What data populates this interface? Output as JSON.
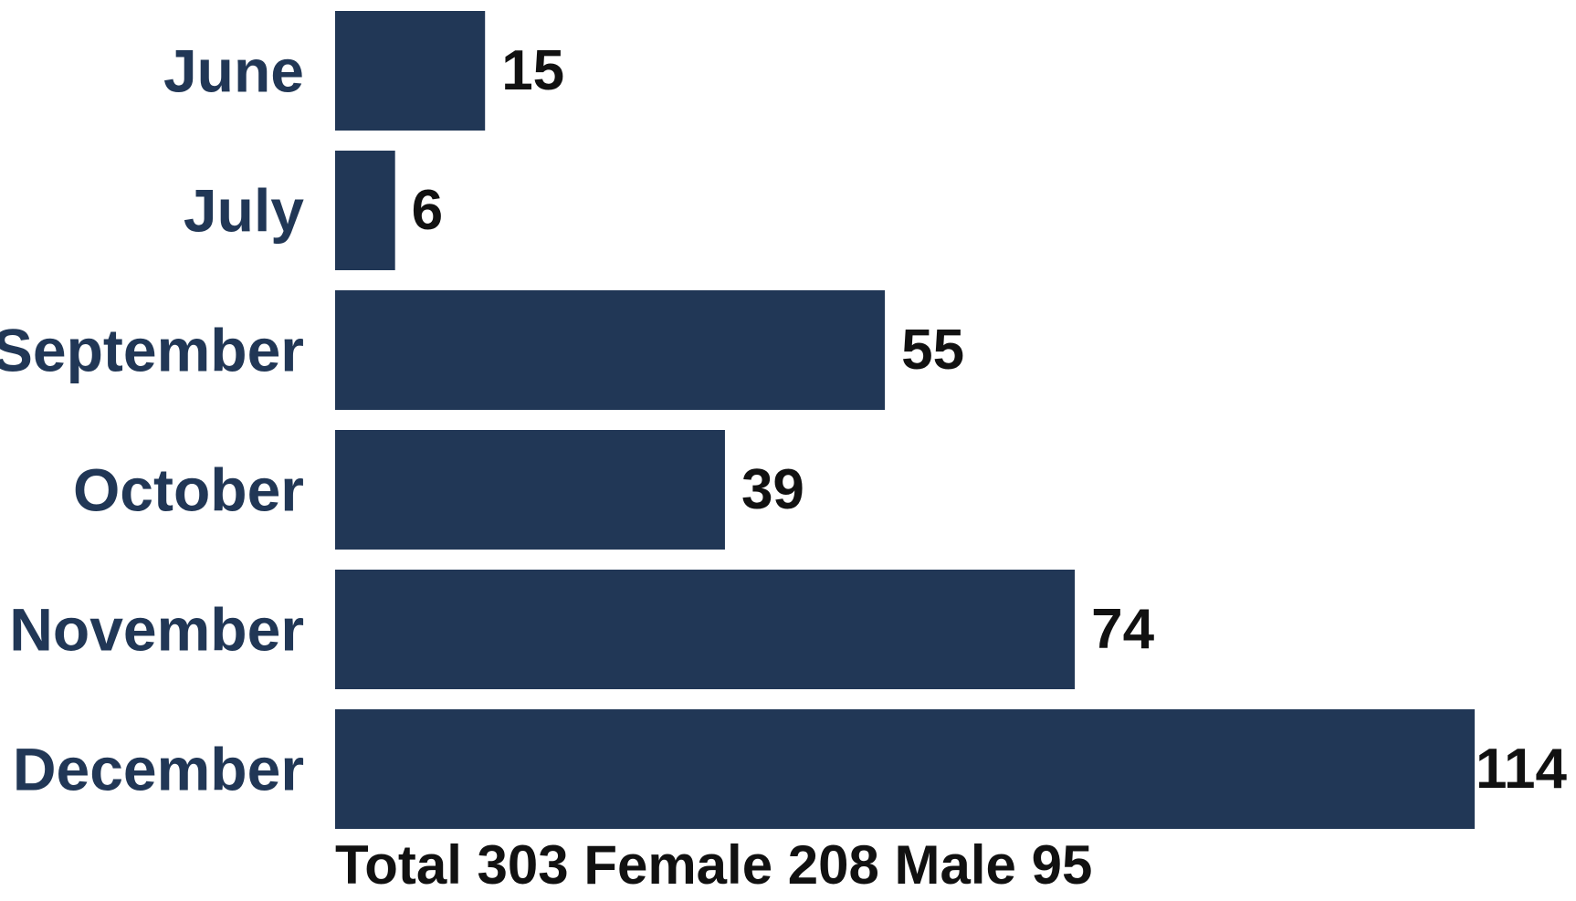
{
  "chart_data": {
    "type": "bar",
    "orientation": "horizontal",
    "categories": [
      "June",
      "July",
      "September",
      "October",
      "November",
      "December"
    ],
    "values": [
      15,
      6,
      55,
      39,
      74,
      114
    ],
    "data_labels": [
      "15",
      "6",
      "55",
      "39",
      "74",
      "114"
    ],
    "title": "",
    "xlabel": "",
    "ylabel": "",
    "xlim": [
      0,
      114
    ],
    "grid": false,
    "legend": "none",
    "axes_visible": false
  },
  "footer_note": "Total 303 Female 208 Male 95",
  "colors": {
    "bar": "#213756",
    "category_label": "#213756",
    "value_label": "#111111",
    "footer": "#111111",
    "background": "#ffffff"
  }
}
